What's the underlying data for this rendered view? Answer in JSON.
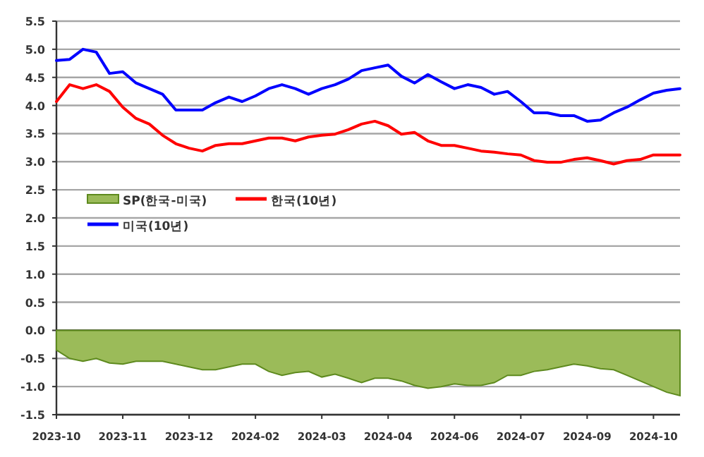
{
  "chart_data": {
    "type": "line",
    "categories": [
      "2023-10",
      null,
      null,
      null,
      null,
      "2023-11",
      null,
      null,
      null,
      null,
      "2023-12",
      null,
      null,
      null,
      null,
      "2024-02",
      null,
      null,
      null,
      null,
      "2024-03",
      null,
      null,
      null,
      null,
      "2024-04",
      null,
      null,
      null,
      null,
      "2024-06",
      null,
      null,
      null,
      null,
      "2024-07",
      null,
      null,
      null,
      null,
      "2024-09",
      null,
      null,
      null,
      null,
      "2024-10",
      null,
      null
    ],
    "series": [
      {
        "name": "SP(한국-미국)",
        "type": "area",
        "color": "#9bbb59",
        "values": [
          -0.35,
          -0.5,
          -0.55,
          -0.5,
          -0.58,
          -0.6,
          -0.55,
          -0.55,
          -0.55,
          -0.6,
          -0.65,
          -0.7,
          -0.7,
          -0.65,
          -0.6,
          -0.6,
          -0.73,
          -0.8,
          -0.75,
          -0.73,
          -0.83,
          -0.78,
          -0.85,
          -0.93,
          -0.85,
          -0.85,
          -0.9,
          -0.98,
          -1.03,
          -1.0,
          -0.95,
          -0.98,
          -0.98,
          -0.93,
          -0.8,
          -0.8,
          -0.73,
          -0.7,
          -0.65,
          -0.6,
          -0.63,
          -0.68,
          -0.7,
          -0.8,
          -0.9,
          -1.0,
          -1.1,
          -1.16
        ]
      },
      {
        "name": "한국(10년)",
        "color": "#ff0000",
        "values": [
          4.07,
          4.37,
          4.3,
          4.37,
          4.25,
          3.97,
          3.77,
          3.67,
          3.47,
          3.32,
          3.24,
          3.19,
          3.29,
          3.32,
          3.32,
          3.37,
          3.42,
          3.42,
          3.37,
          3.44,
          3.47,
          3.49,
          3.57,
          3.67,
          3.72,
          3.64,
          3.49,
          3.52,
          3.37,
          3.29,
          3.29,
          3.24,
          3.19,
          3.17,
          3.14,
          3.12,
          3.02,
          2.99,
          2.99,
          3.04,
          3.07,
          3.02,
          2.96,
          3.02,
          3.04,
          3.12,
          3.12,
          3.12
        ]
      },
      {
        "name": "미국(10년)",
        "color": "#0000ff",
        "values": [
          4.8,
          4.82,
          5.0,
          4.95,
          4.57,
          4.6,
          4.4,
          4.3,
          4.2,
          3.92,
          3.92,
          3.92,
          4.05,
          4.15,
          4.07,
          4.17,
          4.3,
          4.37,
          4.3,
          4.2,
          4.3,
          4.37,
          4.47,
          4.62,
          4.67,
          4.72,
          4.52,
          4.4,
          4.55,
          4.42,
          4.3,
          4.37,
          4.32,
          4.2,
          4.25,
          4.07,
          3.87,
          3.87,
          3.82,
          3.82,
          3.72,
          3.74,
          3.87,
          3.97,
          4.1,
          4.22,
          4.27,
          4.3
        ]
      }
    ],
    "ylim": [
      -1.5,
      5.5
    ],
    "yticks": [
      {
        "value": -1.5,
        "label": "-1.5"
      },
      {
        "value": -1,
        "label": "-1.0"
      },
      {
        "value": -0.5,
        "label": "-0.5"
      },
      {
        "value": 0,
        "label": "0.0"
      },
      {
        "value": 0.5,
        "label": "0.5"
      },
      {
        "value": 1,
        "label": "1.0"
      },
      {
        "value": 1.5,
        "label": "1.5"
      },
      {
        "value": 2,
        "label": "2.0"
      },
      {
        "value": 2.5,
        "label": "2.5"
      },
      {
        "value": 3,
        "label": "3.0"
      },
      {
        "value": 3.5,
        "label": "3.5"
      },
      {
        "value": 4,
        "label": "4.0"
      },
      {
        "value": 4.5,
        "label": "4.5"
      },
      {
        "value": 5,
        "label": "5.0"
      },
      {
        "value": 5.5,
        "label": "5.5"
      }
    ],
    "grid": "y",
    "legend": "left"
  }
}
